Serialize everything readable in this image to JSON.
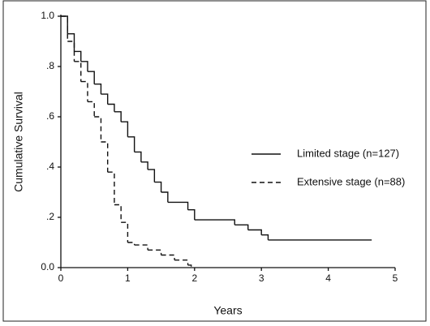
{
  "chart_data": {
    "type": "step",
    "xlabel": "Years",
    "ylabel": "Cumulative Survival",
    "xlim": [
      0,
      5
    ],
    "ylim": [
      0,
      1
    ],
    "xticks": [
      0,
      1,
      2,
      3,
      4,
      5
    ],
    "yticks": [
      {
        "value": 0,
        "label": "0.0"
      },
      {
        "value": 0.2,
        "label": ".2"
      },
      {
        "value": 0.4,
        "label": ".4"
      },
      {
        "value": 0.6,
        "label": ".6"
      },
      {
        "value": 0.8,
        "label": ".8"
      },
      {
        "value": 1,
        "label": "1.0"
      }
    ],
    "series": [
      {
        "name": "Limited stage (n=127)",
        "color": "#111111",
        "dash": "solid",
        "x": [
          0,
          0.1,
          0.2,
          0.3,
          0.4,
          0.5,
          0.6,
          0.7,
          0.8,
          0.9,
          1.0,
          1.1,
          1.2,
          1.3,
          1.4,
          1.5,
          1.6,
          1.9,
          2.0,
          2.6,
          2.8,
          3.0,
          3.1,
          4.65
        ],
        "values": [
          1.0,
          0.93,
          0.86,
          0.82,
          0.78,
          0.73,
          0.69,
          0.65,
          0.62,
          0.58,
          0.52,
          0.46,
          0.42,
          0.39,
          0.34,
          0.3,
          0.26,
          0.23,
          0.19,
          0.17,
          0.15,
          0.13,
          0.11,
          0.11
        ]
      },
      {
        "name": "Extensive stage (n=88)",
        "color": "#111111",
        "dash": "dashed",
        "x": [
          0,
          0.1,
          0.2,
          0.3,
          0.4,
          0.5,
          0.6,
          0.7,
          0.8,
          0.9,
          1.0,
          1.1,
          1.3,
          1.5,
          1.7,
          1.9,
          1.95
        ],
        "values": [
          1.0,
          0.9,
          0.82,
          0.74,
          0.66,
          0.6,
          0.5,
          0.38,
          0.25,
          0.18,
          0.1,
          0.09,
          0.07,
          0.05,
          0.03,
          0.01,
          0
        ]
      }
    ]
  }
}
